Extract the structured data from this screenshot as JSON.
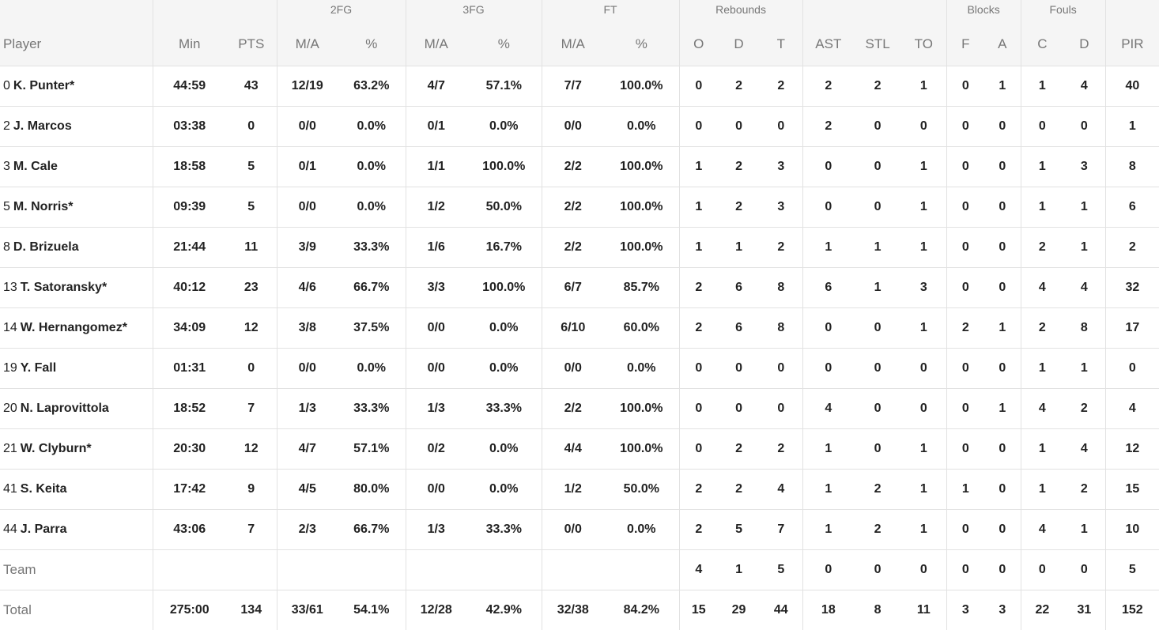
{
  "groups": {
    "fg2": "2FG",
    "fg3": "3FG",
    "ft": "FT",
    "rebounds": "Rebounds",
    "blocks": "Blocks",
    "fouls": "Fouls"
  },
  "columns": [
    "Player",
    "Min",
    "PTS",
    "M/A",
    "%",
    "M/A",
    "%",
    "M/A",
    "%",
    "O",
    "D",
    "T",
    "AST",
    "STL",
    "TO",
    "F",
    "A",
    "C",
    "D",
    "PIR"
  ],
  "players": [
    {
      "num": "0",
      "name": "K. Punter*",
      "stats": [
        "44:59",
        "43",
        "12/19",
        "63.2%",
        "4/7",
        "57.1%",
        "7/7",
        "100.0%",
        "0",
        "2",
        "2",
        "2",
        "2",
        "1",
        "0",
        "1",
        "1",
        "4",
        "40"
      ]
    },
    {
      "num": "2",
      "name": "J. Marcos",
      "stats": [
        "03:38",
        "0",
        "0/0",
        "0.0%",
        "0/1",
        "0.0%",
        "0/0",
        "0.0%",
        "0",
        "0",
        "0",
        "2",
        "0",
        "0",
        "0",
        "0",
        "0",
        "0",
        "1"
      ]
    },
    {
      "num": "3",
      "name": "M. Cale",
      "stats": [
        "18:58",
        "5",
        "0/1",
        "0.0%",
        "1/1",
        "100.0%",
        "2/2",
        "100.0%",
        "1",
        "2",
        "3",
        "0",
        "0",
        "1",
        "0",
        "0",
        "1",
        "3",
        "8"
      ]
    },
    {
      "num": "5",
      "name": "M. Norris*",
      "stats": [
        "09:39",
        "5",
        "0/0",
        "0.0%",
        "1/2",
        "50.0%",
        "2/2",
        "100.0%",
        "1",
        "2",
        "3",
        "0",
        "0",
        "1",
        "0",
        "0",
        "1",
        "1",
        "6"
      ]
    },
    {
      "num": "8",
      "name": "D. Brizuela",
      "stats": [
        "21:44",
        "11",
        "3/9",
        "33.3%",
        "1/6",
        "16.7%",
        "2/2",
        "100.0%",
        "1",
        "1",
        "2",
        "1",
        "1",
        "1",
        "0",
        "0",
        "2",
        "1",
        "2"
      ]
    },
    {
      "num": "13",
      "name": "T. Satoransky*",
      "stats": [
        "40:12",
        "23",
        "4/6",
        "66.7%",
        "3/3",
        "100.0%",
        "6/7",
        "85.7%",
        "2",
        "6",
        "8",
        "6",
        "1",
        "3",
        "0",
        "0",
        "4",
        "4",
        "32"
      ]
    },
    {
      "num": "14",
      "name": "W. Hernangomez*",
      "stats": [
        "34:09",
        "12",
        "3/8",
        "37.5%",
        "0/0",
        "0.0%",
        "6/10",
        "60.0%",
        "2",
        "6",
        "8",
        "0",
        "0",
        "1",
        "2",
        "1",
        "2",
        "8",
        "17"
      ]
    },
    {
      "num": "19",
      "name": "Y. Fall",
      "stats": [
        "01:31",
        "0",
        "0/0",
        "0.0%",
        "0/0",
        "0.0%",
        "0/0",
        "0.0%",
        "0",
        "0",
        "0",
        "0",
        "0",
        "0",
        "0",
        "0",
        "1",
        "1",
        "0"
      ]
    },
    {
      "num": "20",
      "name": "N. Laprovittola",
      "stats": [
        "18:52",
        "7",
        "1/3",
        "33.3%",
        "1/3",
        "33.3%",
        "2/2",
        "100.0%",
        "0",
        "0",
        "0",
        "4",
        "0",
        "0",
        "0",
        "1",
        "4",
        "2",
        "4"
      ]
    },
    {
      "num": "21",
      "name": "W. Clyburn*",
      "stats": [
        "20:30",
        "12",
        "4/7",
        "57.1%",
        "0/2",
        "0.0%",
        "4/4",
        "100.0%",
        "0",
        "2",
        "2",
        "1",
        "0",
        "1",
        "0",
        "0",
        "1",
        "4",
        "12"
      ]
    },
    {
      "num": "41",
      "name": "S. Keita",
      "stats": [
        "17:42",
        "9",
        "4/5",
        "80.0%",
        "0/0",
        "0.0%",
        "1/2",
        "50.0%",
        "2",
        "2",
        "4",
        "1",
        "2",
        "1",
        "1",
        "0",
        "1",
        "2",
        "15"
      ]
    },
    {
      "num": "44",
      "name": "J. Parra",
      "stats": [
        "43:06",
        "7",
        "2/3",
        "66.7%",
        "1/3",
        "33.3%",
        "0/0",
        "0.0%",
        "2",
        "5",
        "7",
        "1",
        "2",
        "1",
        "0",
        "0",
        "4",
        "1",
        "10"
      ]
    }
  ],
  "team": {
    "label": "Team",
    "stats": [
      "",
      "",
      "",
      "",
      "",
      "",
      "",
      "",
      "4",
      "1",
      "5",
      "0",
      "0",
      "0",
      "0",
      "0",
      "0",
      "0",
      "5"
    ]
  },
  "total": {
    "label": "Total",
    "stats": [
      "275:00",
      "134",
      "33/61",
      "54.1%",
      "12/28",
      "42.9%",
      "32/38",
      "84.2%",
      "15",
      "29",
      "44",
      "18",
      "8",
      "11",
      "3",
      "3",
      "22",
      "31",
      "152"
    ]
  }
}
